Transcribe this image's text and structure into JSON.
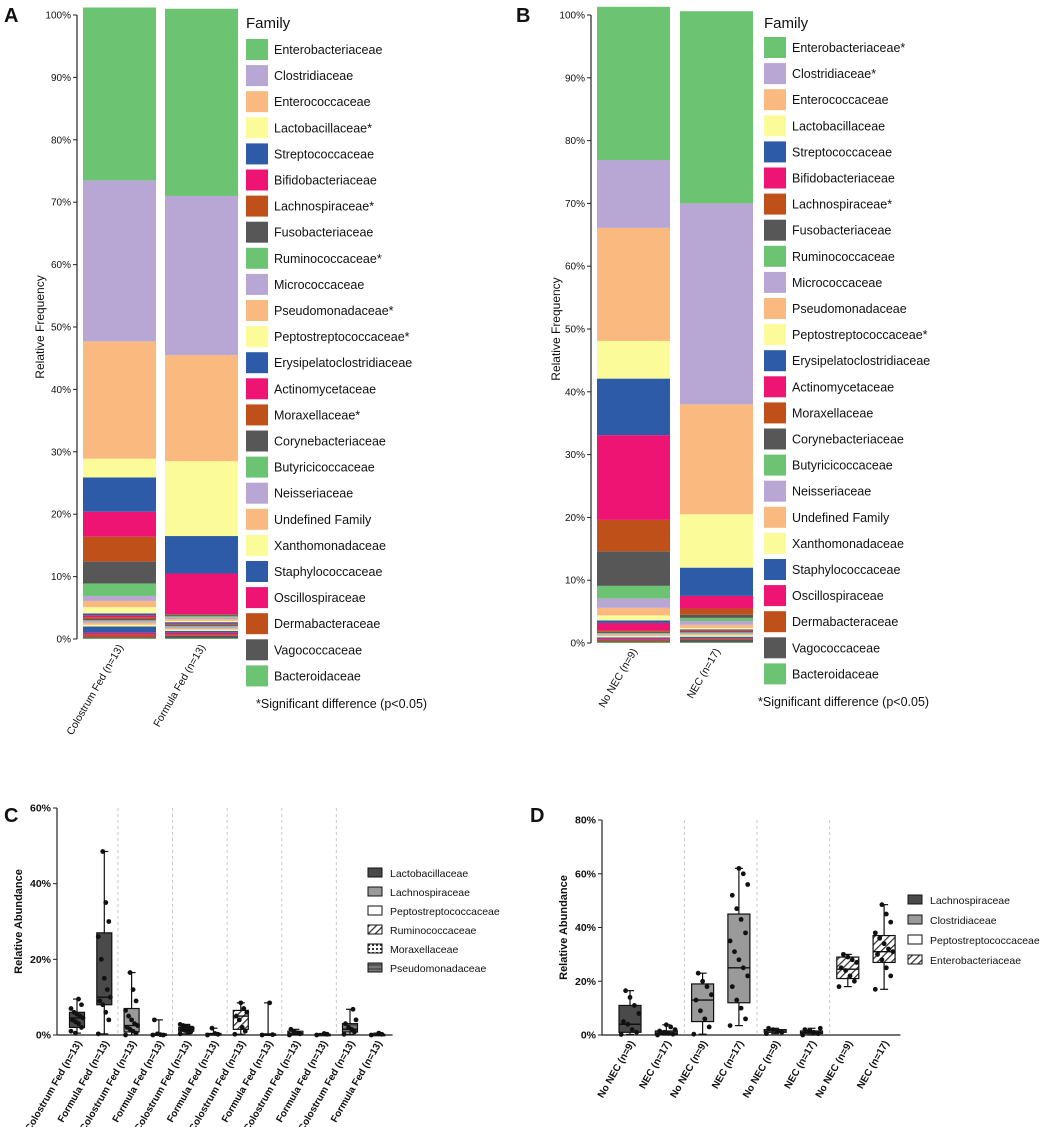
{
  "chart_data": [
    {
      "panel": "A",
      "type": "bar",
      "stacked": true,
      "ylabel": "Relative Frequency",
      "ylim": [
        0,
        100
      ],
      "yticks": [
        "0%",
        "10%",
        "20%",
        "30%",
        "40%",
        "50%",
        "60%",
        "70%",
        "80%",
        "90%",
        "100%"
      ],
      "categories": [
        "Colostrum Fed (n=13)",
        "Formula Fed (n=13)"
      ],
      "legend_title": "Family",
      "legend_labels": [
        "Enterobacteriaceae",
        "Clostridiaceae",
        "Enterococcaceae",
        "Lactobacillaceae*",
        "Streptococcaceae",
        "Bifidobacteriaceae",
        "Lachnospiraceae*",
        "Fusobacteriaceae",
        "Ruminococcaceae*",
        "Micrococcaceae",
        "Pseudomonadaceae*",
        "Peptostreptococcaceae*",
        "Erysipelatoclostridiaceae",
        "Actinomycetaceae",
        "Moraxellaceae*",
        "Corynebacteriaceae",
        "Butyricicoccaceae",
        "Neisseriaceae",
        "Undefined Family",
        "Xanthomonadaceae",
        "Staphylococcaceae",
        "Oscillospiraceae",
        "Dermabacteraceae",
        "Vagococcaceae",
        "Bacteroidaceae"
      ],
      "footnote": "*Significant difference (p<0.05)",
      "series": [
        {
          "name": "Bacteroidaceae",
          "values": [
            0.1,
            0.1
          ]
        },
        {
          "name": "Vagococcaceae",
          "values": [
            0.2,
            0.4
          ]
        },
        {
          "name": "Dermabacteraceae",
          "values": [
            0.4,
            0.2
          ]
        },
        {
          "name": "Oscillospiraceae",
          "values": [
            0.3,
            0.3
          ]
        },
        {
          "name": "Staphylococcaceae",
          "values": [
            1.0,
            0.3
          ]
        },
        {
          "name": "Xanthomonadaceae",
          "values": [
            0.3,
            0.2
          ]
        },
        {
          "name": "Undefined Family",
          "values": [
            0.3,
            0.2
          ]
        },
        {
          "name": "Neisseriaceae",
          "values": [
            0.3,
            0.3
          ]
        },
        {
          "name": "Butyricicoccaceae",
          "values": [
            0.1,
            0.1
          ]
        },
        {
          "name": "Corynebacteriaceae",
          "values": [
            0.2,
            0.2
          ]
        },
        {
          "name": "Moraxellaceae*",
          "values": [
            0.3,
            0.1
          ]
        },
        {
          "name": "Actinomycetaceae",
          "values": [
            0.3,
            0.1
          ]
        },
        {
          "name": "Erysipelatoclostridiaceae",
          "values": [
            0.3,
            0.2
          ]
        },
        {
          "name": "Peptostreptococcaceae*",
          "values": [
            1.0,
            0.2
          ]
        },
        {
          "name": "Pseudomonadaceae*",
          "values": [
            1.0,
            0.3
          ]
        },
        {
          "name": "Micrococcaceae",
          "values": [
            0.8,
            0.3
          ]
        },
        {
          "name": "Ruminococcaceae*",
          "values": [
            2.0,
            0.2
          ]
        },
        {
          "name": "Fusobacteriaceae",
          "values": [
            3.5,
            0.2
          ]
        },
        {
          "name": "Lachnospiraceae*",
          "values": [
            4.0,
            0.1
          ]
        },
        {
          "name": "Bifidobacteriaceae",
          "values": [
            4.0,
            6.5
          ]
        },
        {
          "name": "Streptococcaceae",
          "values": [
            5.5,
            6.0
          ]
        },
        {
          "name": "Lactobacillaceae*",
          "values": [
            3.0,
            12.0
          ]
        },
        {
          "name": "Enterococcaceae",
          "values": [
            18.8,
            17.0
          ]
        },
        {
          "name": "Clostridiaceae",
          "values": [
            25.8,
            25.5
          ]
        },
        {
          "name": "Enterobacteriaceae",
          "values": [
            27.7,
            30.0
          ]
        }
      ]
    },
    {
      "panel": "B",
      "type": "bar",
      "stacked": true,
      "ylabel": "Relative Frequency",
      "ylim": [
        0,
        100
      ],
      "yticks": [
        "0%",
        "10%",
        "20%",
        "30%",
        "40%",
        "50%",
        "60%",
        "70%",
        "80%",
        "90%",
        "100%"
      ],
      "categories": [
        "No NEC (n=9)",
        "NEC (n=17)"
      ],
      "legend_title": "Family",
      "legend_labels": [
        "Enterobacteriaceae*",
        "Clostridiaceae*",
        "Enterococcaceae",
        "Lactobacillaceae",
        "Streptococcaceae",
        "Bifidobacteriaceae",
        "Lachnospiraceae*",
        "Fusobacteriaceae",
        "Ruminococcaceae",
        "Micrococcaceae",
        "Pseudomonadaceae",
        "Peptostreptococcaceae*",
        "Erysipelatoclostridiaceae",
        "Actinomycetaceae",
        "Moraxellaceae",
        "Corynebacteriaceae",
        "Butyricicoccaceae",
        "Neisseriaceae",
        "Undefined Family",
        "Xanthomonadaceae",
        "Staphylococcaceae",
        "Oscillospiraceae",
        "Dermabacteraceae",
        "Vagococcaceae",
        "Bacteroidaceae"
      ],
      "footnote": "*Significant difference (p<0.05)",
      "series": [
        {
          "name": "Bacteroidaceae",
          "values": [
            0.1,
            0.1
          ]
        },
        {
          "name": "Vagococcaceae",
          "values": [
            0.2,
            0.5
          ]
        },
        {
          "name": "Dermabacteraceae",
          "values": [
            0.2,
            0.1
          ]
        },
        {
          "name": "Oscillospiraceae",
          "values": [
            0.2,
            0.1
          ]
        },
        {
          "name": "Staphylococcaceae",
          "values": [
            0.2,
            0.2
          ]
        },
        {
          "name": "Xanthomonadaceae",
          "values": [
            0.2,
            0.2
          ]
        },
        {
          "name": "Undefined Family",
          "values": [
            0.2,
            0.2
          ]
        },
        {
          "name": "Neisseriaceae",
          "values": [
            0.2,
            0.2
          ]
        },
        {
          "name": "Butyricicoccaceae",
          "values": [
            0.1,
            0.1
          ]
        },
        {
          "name": "Corynebacteriaceae",
          "values": [
            0.2,
            0.2
          ]
        },
        {
          "name": "Moraxellaceae",
          "values": [
            0.2,
            0.1
          ]
        },
        {
          "name": "Actinomycetaceae",
          "values": [
            1.2,
            0.1
          ]
        },
        {
          "name": "Erysipelatoclostridiaceae",
          "values": [
            0.4,
            0.1
          ]
        },
        {
          "name": "Peptostreptococcaceae*",
          "values": [
            0.8,
            0.2
          ]
        },
        {
          "name": "Pseudomonadaceae",
          "values": [
            1.2,
            0.5
          ]
        },
        {
          "name": "Micrococcaceae",
          "values": [
            1.5,
            0.6
          ]
        },
        {
          "name": "Ruminococcaceae",
          "values": [
            2.0,
            0.5
          ]
        },
        {
          "name": "Fusobacteriaceae",
          "values": [
            5.5,
            0.5
          ]
        },
        {
          "name": "Lachnospiraceae*",
          "values": [
            5.0,
            1.0
          ]
        },
        {
          "name": "Bifidobacteriaceae",
          "values": [
            13.5,
            2.0
          ]
        },
        {
          "name": "Streptococcaceae",
          "values": [
            9.0,
            4.5
          ]
        },
        {
          "name": "Lactobacillaceae",
          "values": [
            6.0,
            8.5
          ]
        },
        {
          "name": "Enterococcaceae",
          "values": [
            18.0,
            17.5
          ]
        },
        {
          "name": "Clostridiaceae",
          "values": [
            10.8,
            32.0
          ]
        },
        {
          "name": "Enterobacteriaceae*",
          "values": [
            24.4,
            30.6
          ]
        }
      ]
    },
    {
      "panel": "C",
      "type": "box",
      "ylabel": "Relative Abundance",
      "ylim": [
        0,
        60
      ],
      "yticks": [
        "0%",
        "20%",
        "40%",
        "60%"
      ],
      "categories": [
        "Colostrum Fed (n=13)",
        "Formula Fed (n=13)",
        "Colostrum Fed (n=13)",
        "Formula Fed (n=13)",
        "Colostrum Fed (n=13)",
        "Formula Fed (n=13)",
        "Colostrum Fed (n=13)",
        "Formula Fed (n=13)",
        "Colostrum Fed (n=13)",
        "Formula Fed (n=13)",
        "Colostrum Fed (n=13)",
        "Formula Fed (n=13)"
      ],
      "legend": [
        "Lactobacillaceae",
        "Lachnospiraceae",
        "Peptostreptococcaceae",
        "Ruminococcaceae",
        "Moraxellaceae",
        "Pseudomonadaceae"
      ],
      "boxes": [
        {
          "family": 0,
          "min": 0.5,
          "q1": 2,
          "median": 4.5,
          "q3": 6,
          "max": 9.5,
          "points": [
            1,
            2,
            3,
            3.5,
            4,
            4.5,
            5,
            5.5,
            6,
            7,
            8,
            9.5,
            0.5
          ]
        },
        {
          "family": 0,
          "min": 0.3,
          "q1": 8,
          "median": 10,
          "q3": 27,
          "max": 48.5,
          "points": [
            0.3,
            4,
            6,
            8,
            9,
            10,
            12,
            15,
            20,
            26,
            30,
            35,
            48.5
          ]
        },
        {
          "family": 1,
          "min": 0,
          "q1": 0.8,
          "median": 2.5,
          "q3": 7,
          "max": 16.5,
          "points": [
            0,
            0.5,
            1,
            1.5,
            2,
            2.5,
            3,
            4,
            5,
            6.5,
            9,
            12,
            16.5
          ]
        },
        {
          "family": 1,
          "min": 0,
          "q1": 0,
          "median": 0.1,
          "q3": 0.3,
          "max": 4,
          "points": [
            0,
            0,
            0.1,
            0.3,
            4
          ]
        },
        {
          "family": 2,
          "min": 0.3,
          "q1": 1,
          "median": 1.5,
          "q3": 2,
          "max": 2.8,
          "points": [
            0.3,
            0.8,
            1,
            1.2,
            1.5,
            1.8,
            2,
            2.3,
            2.5,
            2.8
          ]
        },
        {
          "family": 2,
          "min": 0,
          "q1": 0,
          "median": 0.2,
          "q3": 0.4,
          "max": 1.8,
          "points": [
            0,
            0.2,
            0.4,
            1.8
          ]
        },
        {
          "family": 3,
          "min": 0.2,
          "q1": 1.5,
          "median": 5,
          "q3": 6.5,
          "max": 8.5,
          "points": [
            0.2,
            1,
            2,
            4,
            5,
            6,
            7,
            8.5
          ]
        },
        {
          "family": 3,
          "min": 0,
          "q1": 0,
          "median": 0.1,
          "q3": 0.3,
          "max": 8.5,
          "points": [
            0,
            0.1,
            8.5
          ]
        },
        {
          "family": 4,
          "min": 0,
          "q1": 0.2,
          "median": 0.5,
          "q3": 1,
          "max": 1.5,
          "points": [
            0,
            0.3,
            0.6,
            1,
            1.5
          ]
        },
        {
          "family": 4,
          "min": 0,
          "q1": 0,
          "median": 0.1,
          "q3": 0.2,
          "max": 0.4,
          "points": [
            0,
            0.2,
            0.4
          ]
        },
        {
          "family": 5,
          "min": 0.2,
          "q1": 0.8,
          "median": 1.5,
          "q3": 3,
          "max": 6.8,
          "points": [
            0.2,
            0.8,
            1.5,
            2,
            3,
            4,
            6.8
          ]
        },
        {
          "family": 5,
          "min": 0,
          "q1": 0,
          "median": 0.1,
          "q3": 0.2,
          "max": 0.5,
          "points": [
            0,
            0.2,
            0.5
          ]
        }
      ]
    },
    {
      "panel": "D",
      "type": "box",
      "ylabel": "Relative Abundance",
      "ylim": [
        0,
        80
      ],
      "yticks": [
        "0%",
        "20%",
        "40%",
        "60%",
        "80%"
      ],
      "categories": [
        "No NEC (n=9)",
        "NEC (n=17)",
        "No NEC (n=9)",
        "NEC (n=17)",
        "No NEC (n=9)",
        "NEC (n=17)",
        "No NEC (n=9)",
        "NEC (n=17)"
      ],
      "legend": [
        "Lachnospiraceae",
        "Clostridiaceae",
        "Peptostreptococcaceae",
        "Enterobacteriaceae"
      ],
      "boxes": [
        {
          "family": 0,
          "min": 0.2,
          "q1": 1,
          "median": 4,
          "q3": 11,
          "max": 16.5,
          "points": [
            0.2,
            1,
            2,
            4,
            5,
            8,
            11,
            14,
            16.5
          ]
        },
        {
          "family": 0,
          "min": 0,
          "q1": 0.2,
          "median": 0.6,
          "q3": 1.5,
          "max": 3.8,
          "points": [
            0,
            0.3,
            0.6,
            1,
            1.5,
            2,
            3,
            3.8
          ]
        },
        {
          "family": 1,
          "min": 0.3,
          "q1": 5,
          "median": 13,
          "q3": 19,
          "max": 23,
          "points": [
            0.3,
            3,
            6,
            9,
            13,
            15,
            18,
            20,
            23
          ]
        },
        {
          "family": 1,
          "min": 3.5,
          "q1": 12,
          "median": 25,
          "q3": 45,
          "max": 62,
          "points": [
            3.5,
            6,
            10,
            13,
            18,
            22,
            25,
            28,
            31,
            35,
            38,
            43,
            47,
            52,
            56,
            60,
            62
          ]
        },
        {
          "family": 2,
          "min": 0.5,
          "q1": 1,
          "median": 1.5,
          "q3": 2,
          "max": 2.5,
          "points": [
            0.5,
            1,
            1.5,
            2,
            2.5
          ]
        },
        {
          "family": 2,
          "min": 0,
          "q1": 0.5,
          "median": 1,
          "q3": 1.5,
          "max": 2.5,
          "points": [
            0,
            0.5,
            1,
            1.5,
            2,
            2.5
          ]
        },
        {
          "family": 3,
          "min": 18,
          "q1": 21,
          "median": 24.5,
          "q3": 29,
          "max": 30,
          "points": [
            18,
            20,
            22,
            24,
            25,
            27,
            28,
            29,
            30
          ]
        },
        {
          "family": 3,
          "min": 17,
          "q1": 27,
          "median": 31,
          "q3": 37,
          "max": 48.5,
          "points": [
            17,
            22,
            25,
            28,
            30,
            31,
            32,
            34,
            36,
            38,
            42,
            45,
            48.5
          ]
        }
      ]
    }
  ],
  "colors": {
    "green": "#6cc472",
    "lavender": "#b8a6d4",
    "peach": "#f9b97f",
    "yellow": "#fbfb9a",
    "blue": "#2d5ba8",
    "magenta": "#ee1474",
    "rust": "#c0501a",
    "dark": "#575757",
    "box_dark": "#4a4a4a",
    "box_mid": "#9a9a9a",
    "box_light": "#ffffff",
    "grid": "#c8c8c8"
  }
}
